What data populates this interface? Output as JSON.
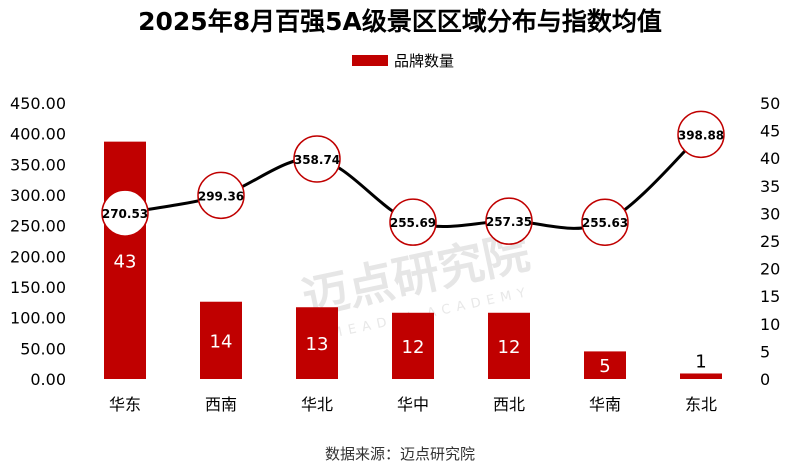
{
  "chart_data": {
    "type": "bar+line",
    "title": "2025年8月百强5A级景区区域分布与指数均值",
    "categories": [
      "华东",
      "西南",
      "华北",
      "华中",
      "西北",
      "华南",
      "东北"
    ],
    "series": [
      {
        "name": "品牌数量",
        "type": "bar",
        "axis": "right",
        "values": [
          43,
          14,
          13,
          12,
          12,
          5,
          1
        ],
        "color": "#c00000"
      },
      {
        "type": "line",
        "axis": "left",
        "values": [
          270.53,
          299.36,
          358.74,
          255.69,
          257.35,
          255.63,
          398.88
        ],
        "color": "#000000",
        "marker_stroke": "#c00000"
      }
    ],
    "y_left": {
      "range": [
        0,
        450
      ],
      "ticks": [
        "0.00",
        "50.00",
        "100.00",
        "150.00",
        "200.00",
        "250.00",
        "300.00",
        "350.00",
        "400.00",
        "450.00"
      ]
    },
    "y_right": {
      "range": [
        0,
        50
      ],
      "ticks": [
        "0",
        "5",
        "10",
        "15",
        "20",
        "25",
        "30",
        "35",
        "40",
        "45",
        "50"
      ]
    },
    "legend": {
      "position": "top",
      "entries": [
        "品牌数量"
      ]
    },
    "grid": false,
    "source": "数据来源：迈点研究院",
    "watermark": {
      "text": "迈点研究院",
      "subtext": "MEADIN ACADEMY"
    }
  }
}
